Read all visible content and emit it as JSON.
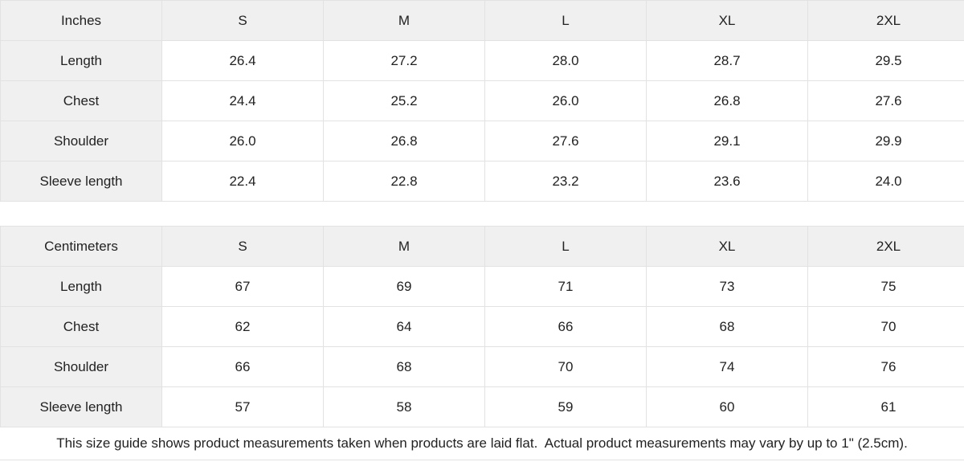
{
  "note": "This size guide shows product measurements taken when products are laid flat.  Actual product measurements may vary by up to 1\" (2.5cm).",
  "colors": {
    "header_cell_bg": "#f0f0f0",
    "value_cell_bg": "#ffffff",
    "border": "#e2e2e2",
    "text": "#222222"
  },
  "tables": [
    {
      "unit_label": "Inches",
      "columns": [
        "S",
        "M",
        "L",
        "XL",
        "2XL"
      ],
      "rows": [
        {
          "label": "Length",
          "values": [
            "26.4",
            "27.2",
            "28.0",
            "28.7",
            "29.5"
          ]
        },
        {
          "label": "Chest",
          "values": [
            "24.4",
            "25.2",
            "26.0",
            "26.8",
            "27.6"
          ]
        },
        {
          "label": "Shoulder",
          "values": [
            "26.0",
            "26.8",
            "27.6",
            "29.1",
            "29.9"
          ]
        },
        {
          "label": "Sleeve length",
          "values": [
            "22.4",
            "22.8",
            "23.2",
            "23.6",
            "24.0"
          ]
        }
      ]
    },
    {
      "unit_label": "Centimeters",
      "columns": [
        "S",
        "M",
        "L",
        "XL",
        "2XL"
      ],
      "rows": [
        {
          "label": "Length",
          "values": [
            "67",
            "69",
            "71",
            "73",
            "75"
          ]
        },
        {
          "label": "Chest",
          "values": [
            "62",
            "64",
            "66",
            "68",
            "70"
          ]
        },
        {
          "label": "Shoulder",
          "values": [
            "66",
            "68",
            "70",
            "74",
            "76"
          ]
        },
        {
          "label": "Sleeve length",
          "values": [
            "57",
            "58",
            "59",
            "60",
            "61"
          ]
        }
      ]
    }
  ]
}
